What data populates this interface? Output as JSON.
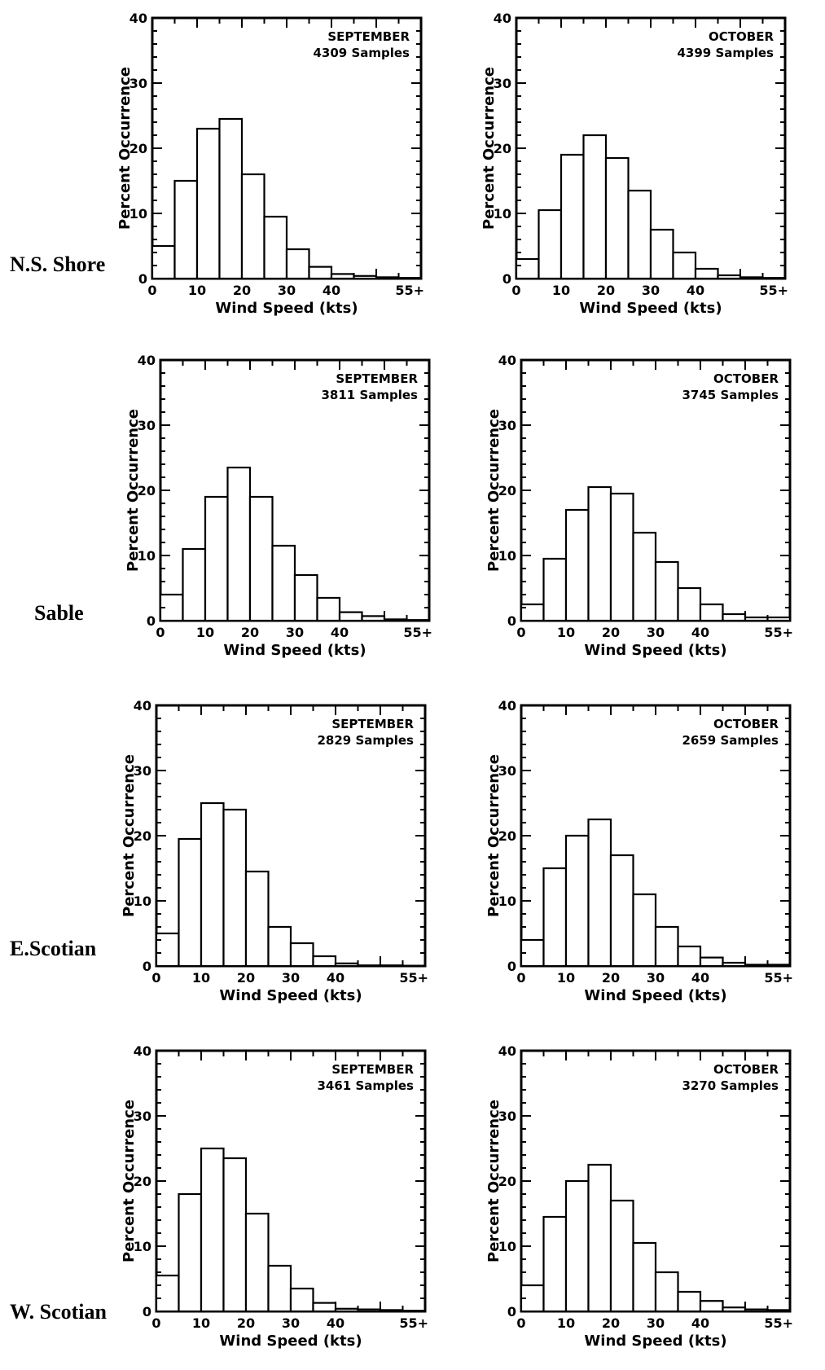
{
  "region_labels": [
    "N.S. Shore",
    "Sable",
    "E.Scotian",
    "W. Scotian"
  ],
  "chart_data": [
    {
      "type": "bar",
      "region": "N.S. Shore",
      "month": "SEPTEMBER",
      "samples": "4309 Samples",
      "categories": [
        "0-5",
        "5-10",
        "10-15",
        "15-20",
        "20-25",
        "25-30",
        "30-35",
        "35-40",
        "40-45",
        "45-50",
        "50-55",
        "55+"
      ],
      "values": [
        5,
        15,
        23,
        24.5,
        16,
        9.5,
        4.5,
        1.8,
        0.7,
        0.4,
        0.2,
        0.1
      ],
      "xlabel": "Wind Speed (kts)",
      "ylabel": "Percent Occurrence",
      "ylim": [
        0,
        40
      ],
      "yticks": [
        "0",
        "10",
        "20",
        "30",
        "40"
      ],
      "xticks": [
        "0",
        "10",
        "20",
        "30",
        "40",
        "55+"
      ]
    },
    {
      "type": "bar",
      "region": "N.S. Shore",
      "month": "OCTOBER",
      "samples": "4399 Samples",
      "categories": [
        "0-5",
        "5-10",
        "10-15",
        "15-20",
        "20-25",
        "25-30",
        "30-35",
        "35-40",
        "40-45",
        "45-50",
        "50-55",
        "55+"
      ],
      "values": [
        3,
        10.5,
        19,
        22,
        18.5,
        13.5,
        7.5,
        4,
        1.5,
        0.5,
        0.2,
        0.1
      ],
      "xlabel": "Wind Speed (kts)",
      "ylabel": "Percent Occurrence",
      "ylim": [
        0,
        40
      ],
      "yticks": [
        "0",
        "10",
        "20",
        "30",
        "40"
      ],
      "xticks": [
        "0",
        "10",
        "20",
        "30",
        "40",
        "55+"
      ]
    },
    {
      "type": "bar",
      "region": "Sable",
      "month": "SEPTEMBER",
      "samples": "3811 Samples",
      "categories": [
        "0-5",
        "5-10",
        "10-15",
        "15-20",
        "20-25",
        "25-30",
        "30-35",
        "35-40",
        "40-45",
        "45-50",
        "50-55",
        "55+"
      ],
      "values": [
        4,
        11,
        19,
        23.5,
        19,
        11.5,
        7,
        3.5,
        1.3,
        0.7,
        0.2,
        0.1
      ],
      "xlabel": "Wind Speed (kts)",
      "ylabel": "Percent Occurrence",
      "ylim": [
        0,
        40
      ],
      "yticks": [
        "0",
        "10",
        "20",
        "30",
        "40"
      ],
      "xticks": [
        "0",
        "10",
        "20",
        "30",
        "40",
        "55+"
      ]
    },
    {
      "type": "bar",
      "region": "Sable",
      "month": "OCTOBER",
      "samples": "3745 Samples",
      "categories": [
        "0-5",
        "5-10",
        "10-15",
        "15-20",
        "20-25",
        "25-30",
        "30-35",
        "35-40",
        "40-45",
        "45-50",
        "50-55",
        "55+"
      ],
      "values": [
        2.5,
        9.5,
        17,
        20.5,
        19.5,
        13.5,
        9,
        5,
        2.5,
        1,
        0.5,
        0.5
      ],
      "xlabel": "Wind Speed (kts)",
      "ylabel": "Percent Occurrence",
      "ylim": [
        0,
        40
      ],
      "yticks": [
        "0",
        "10",
        "20",
        "30",
        "40"
      ],
      "xticks": [
        "0",
        "10",
        "20",
        "30",
        "40",
        "55+"
      ]
    },
    {
      "type": "bar",
      "region": "E.Scotian",
      "month": "SEPTEMBER",
      "samples": "2829 Samples",
      "categories": [
        "0-5",
        "5-10",
        "10-15",
        "15-20",
        "20-25",
        "25-30",
        "30-35",
        "35-40",
        "40-45",
        "45-50",
        "50-55",
        "55+"
      ],
      "values": [
        5,
        19.5,
        25,
        24,
        14.5,
        6,
        3.5,
        1.5,
        0.4,
        0.1,
        0.1,
        0
      ],
      "xlabel": "Wind Speed (kts)",
      "ylabel": "Percent Occurrence",
      "ylim": [
        0,
        40
      ],
      "yticks": [
        "0",
        "10",
        "20",
        "30",
        "40"
      ],
      "xticks": [
        "0",
        "10",
        "20",
        "30",
        "40",
        "55+"
      ]
    },
    {
      "type": "bar",
      "region": "E.Scotian",
      "month": "OCTOBER",
      "samples": "2659 Samples",
      "categories": [
        "0-5",
        "5-10",
        "10-15",
        "15-20",
        "20-25",
        "25-30",
        "30-35",
        "35-40",
        "40-45",
        "45-50",
        "50-55",
        "55+"
      ],
      "values": [
        4,
        15,
        20,
        22.5,
        17,
        11,
        6,
        3,
        1.3,
        0.5,
        0.2,
        0.2
      ],
      "xlabel": "Wind Speed (kts)",
      "ylabel": "Percent Occurrence",
      "ylim": [
        0,
        40
      ],
      "yticks": [
        "0",
        "10",
        "20",
        "30",
        "40"
      ],
      "xticks": [
        "0",
        "10",
        "20",
        "30",
        "40",
        "55+"
      ]
    },
    {
      "type": "bar",
      "region": "W. Scotian",
      "month": "SEPTEMBER",
      "samples": "3461 Samples",
      "categories": [
        "0-5",
        "5-10",
        "10-15",
        "15-20",
        "20-25",
        "25-30",
        "30-35",
        "35-40",
        "40-45",
        "45-50",
        "50-55",
        "55+"
      ],
      "values": [
        5.5,
        18,
        25,
        23.5,
        15,
        7,
        3.5,
        1.3,
        0.4,
        0.3,
        0.2,
        0.1
      ],
      "xlabel": "Wind Speed (kts)",
      "ylabel": "Percent Occurrence",
      "ylim": [
        0,
        40
      ],
      "yticks": [
        "0",
        "10",
        "20",
        "30",
        "40"
      ],
      "xticks": [
        "0",
        "10",
        "20",
        "30",
        "40",
        "55+"
      ]
    },
    {
      "type": "bar",
      "region": "W. Scotian",
      "month": "OCTOBER",
      "samples": "3270 Samples",
      "categories": [
        "0-5",
        "5-10",
        "10-15",
        "15-20",
        "20-25",
        "25-30",
        "30-35",
        "35-40",
        "40-45",
        "45-50",
        "50-55",
        "55+"
      ],
      "values": [
        4,
        14.5,
        20,
        22.5,
        17,
        10.5,
        6,
        3,
        1.6,
        0.6,
        0.3,
        0.2
      ],
      "xlabel": "Wind Speed (kts)",
      "ylabel": "Percent Occurrence",
      "ylim": [
        0,
        40
      ],
      "yticks": [
        "0",
        "10",
        "20",
        "30",
        "40"
      ],
      "xticks": [
        "0",
        "10",
        "20",
        "30",
        "40",
        "55+"
      ]
    }
  ]
}
